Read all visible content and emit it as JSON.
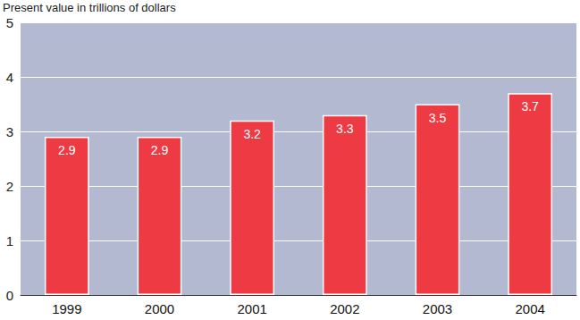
{
  "chart_data": {
    "type": "bar",
    "ylabel": "Present value in trillions of dollars",
    "categories": [
      "1999",
      "2000",
      "2001",
      "2002",
      "2003",
      "2004"
    ],
    "values": [
      2.9,
      2.9,
      3.2,
      3.3,
      3.5,
      3.7
    ],
    "color": "#ee3a43",
    "ylim": [
      0,
      5
    ],
    "yticks": [
      0,
      1,
      2,
      3,
      4,
      5
    ],
    "grid": true,
    "data_labels": true
  }
}
